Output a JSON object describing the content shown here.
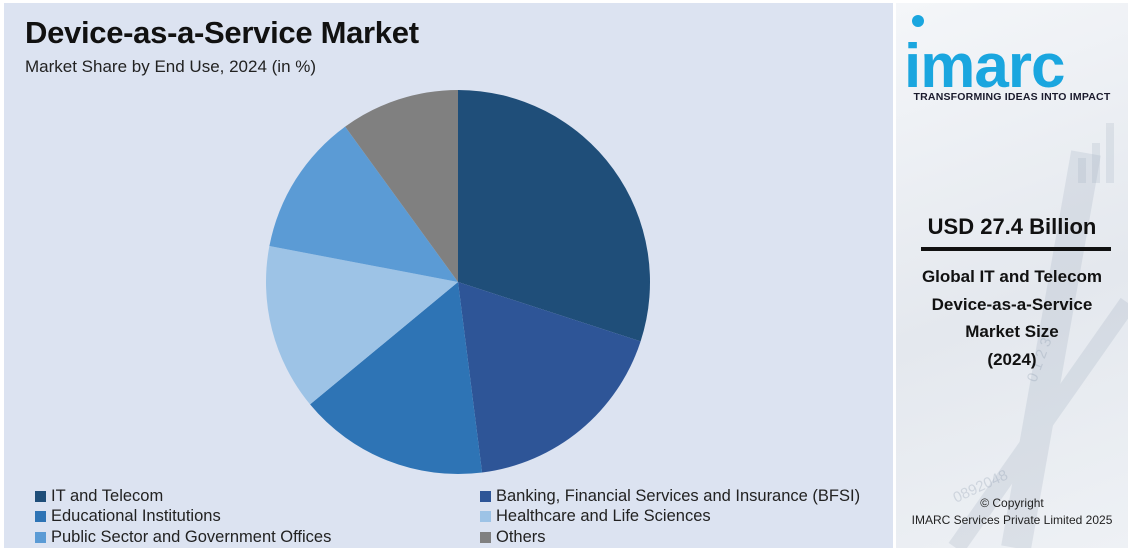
{
  "chart_data": {
    "type": "pie",
    "title": "Device-as-a-Service Market",
    "subtitle": "Market Share by End Use, 2024 (in %)",
    "slices": [
      {
        "label": "IT and Telecom",
        "value": 30,
        "color": "#1f4e79"
      },
      {
        "label": "Banking, Financial Services and Insurance (BFSI)",
        "value": 18,
        "color": "#2e5597"
      },
      {
        "label": "Educational Institutions",
        "value": 16,
        "color": "#2e74b5"
      },
      {
        "label": "Healthcare and Life Sciences",
        "value": 14,
        "color": "#9dc3e6"
      },
      {
        "label": "Public Sector and Government Offices",
        "value": 12,
        "color": "#5b9bd5"
      },
      {
        "label": "Others",
        "value": 10,
        "color": "#808080"
      }
    ],
    "legend_position": "bottom"
  },
  "brand": {
    "logo_text": "imarc",
    "tagline": "TRANSFORMING IDEAS INTO IMPACT",
    "logo_color": "#1aa6df"
  },
  "summary": {
    "market_value": "USD 27.4 Billion",
    "description_lines": [
      "Global IT and Telecom",
      "Device-as-a-Service",
      "Market Size",
      "(2024)"
    ]
  },
  "copyright": {
    "line1": "© Copyright",
    "line2": "IMARC Services Private Limited 2025"
  }
}
